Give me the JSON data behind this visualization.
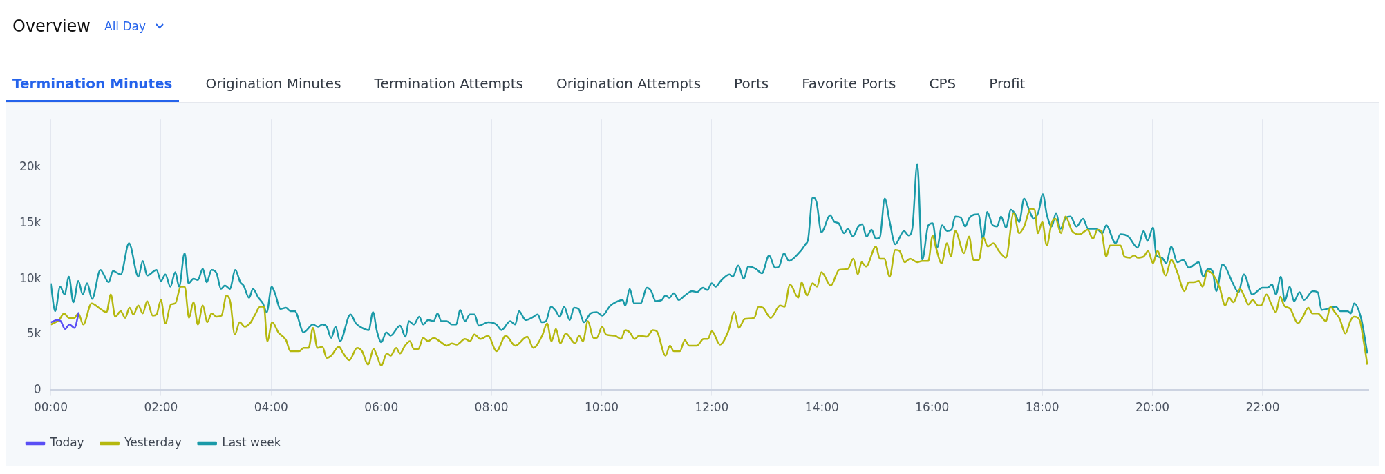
{
  "chart_data": {
    "type": "line",
    "title": "Overview",
    "subtitle": "All Day",
    "annotations": [
      "Termination Minutes",
      "Origination Minutes",
      "Termination Attempts",
      "Origination Attempts",
      "Ports",
      "Favorite Ports",
      "CPS",
      "Profit"
    ],
    "xlim": [
      0,
      23.92
    ],
    "xticks": [
      {
        "value": 0,
        "label": "00:00"
      },
      {
        "value": 2,
        "label": "02:00"
      },
      {
        "value": 4,
        "label": "04:00"
      },
      {
        "value": 6,
        "label": "06:00"
      },
      {
        "value": 8,
        "label": "08:00"
      },
      {
        "value": 10,
        "label": "10:00"
      },
      {
        "value": 12,
        "label": "12:00"
      },
      {
        "value": 14,
        "label": "14:00"
      },
      {
        "value": 16,
        "label": "16:00"
      },
      {
        "value": 18,
        "label": "18:00"
      },
      {
        "value": 20,
        "label": "20:00"
      },
      {
        "value": 22,
        "label": "22:00"
      }
    ],
    "ylim": [
      0,
      24300
    ],
    "yticks": [
      {
        "value": 0,
        "label": "0"
      },
      {
        "value": 5000,
        "label": "5k"
      },
      {
        "value": 10000,
        "label": "10k"
      },
      {
        "value": 15000,
        "label": "15k"
      },
      {
        "value": 20000,
        "label": "20k"
      }
    ],
    "grid": "x",
    "legend": "bottom left",
    "marker": "none",
    "line_style": "solid",
    "series": [
      {
        "name": "Today",
        "color": "#5a4ff5",
        "x": [
          0,
          0.12,
          0.18,
          0.26,
          0.34,
          0.43,
          0.51
        ],
        "values": [
          6100,
          6300,
          6200,
          5500,
          5900,
          5600,
          7000
        ]
      },
      {
        "name": "Yesterday",
        "color": "#b5b80f",
        "x": [
          0,
          0.15,
          0.24,
          0.33,
          0.43,
          0.5,
          0.59,
          0.74,
          0.9,
          1.01,
          1.09,
          1.17,
          1.27,
          1.35,
          1.43,
          1.5,
          1.59,
          1.67,
          1.75,
          1.85,
          1.92,
          2,
          2.08,
          2.18,
          2.26,
          2.36,
          2.43,
          2.51,
          2.59,
          2.67,
          2.76,
          2.84,
          2.92,
          3.01,
          3.1,
          3.19,
          3.26,
          3.34,
          3.43,
          3.52,
          3.63,
          3.71,
          3.8,
          3.87,
          3.93,
          4.02,
          4.13,
          4.27,
          4.35,
          4.51,
          4.59,
          4.68,
          4.76,
          4.84,
          4.93,
          5.01,
          5.09,
          5.23,
          5.31,
          5.42,
          5.56,
          5.65,
          5.76,
          5.86,
          5.92,
          6,
          6.1,
          6.17,
          6.27,
          6.34,
          6.43,
          6.52,
          6.59,
          6.67,
          6.76,
          6.85,
          6.95,
          7.06,
          7.19,
          7.28,
          7.37,
          7.52,
          7.61,
          7.69,
          7.8,
          7.94,
          8.09,
          8.26,
          8.43,
          8.65,
          8.76,
          8.92,
          9.01,
          9.09,
          9.17,
          9.25,
          9.35,
          9.52,
          9.59,
          9.66,
          9.75,
          9.85,
          9.91,
          10.01,
          10.08,
          10.24,
          10.35,
          10.43,
          10.51,
          10.6,
          10.68,
          10.82,
          10.93,
          11,
          11.16,
          11.24,
          11.31,
          11.42,
          11.51,
          11.59,
          11.73,
          11.85,
          11.93,
          12,
          12.15,
          12.3,
          12.41,
          12.49,
          12.6,
          12.77,
          12.85,
          12.93,
          13.07,
          13.24,
          13.32,
          13.42,
          13.57,
          13.63,
          13.73,
          13.83,
          13.91,
          13.99,
          14.16,
          14.31,
          14.47,
          14.57,
          14.65,
          14.72,
          14.8,
          14.98,
          15.05,
          15.13,
          15.23,
          15.33,
          15.41,
          15.5,
          15.6,
          15.73,
          15.82,
          15.93,
          16.01,
          16.07,
          16.17,
          16.27,
          16.34,
          16.42,
          16.58,
          16.67,
          16.75,
          16.85,
          16.93,
          17.01,
          17.11,
          17.21,
          17.34,
          17.48,
          17.58,
          17.67,
          17.79,
          17.86,
          17.92,
          18,
          18.08,
          18.17,
          18.24,
          18.34,
          18.42,
          18.54,
          18.68,
          18.82,
          18.92,
          19,
          19.07,
          19.16,
          19.23,
          19.42,
          19.49,
          19.59,
          19.67,
          19.73,
          19.84,
          19.92,
          20.01,
          20.09,
          20.24,
          20.34,
          20.45,
          20.58,
          20.66,
          20.75,
          20.84,
          20.91,
          21,
          21.11,
          21.22,
          21.32,
          21.39,
          21.47,
          21.59,
          21.67,
          21.74,
          21.82,
          21.92,
          21.97,
          22.07,
          22.15,
          22.24,
          22.32,
          22.39,
          22.5,
          22.64,
          22.72,
          22.83,
          22.9,
          23,
          23.15,
          23.23,
          23.31,
          23.4,
          23.5,
          23.6,
          23.66,
          23.76,
          23.83,
          23.9
        ],
        "values": [
          5900,
          6300,
          6900,
          6500,
          6500,
          6900,
          5900,
          7800,
          7300,
          7000,
          8600,
          6600,
          7100,
          6500,
          7400,
          6800,
          7600,
          6900,
          8000,
          6700,
          6800,
          8100,
          6000,
          7700,
          7800,
          9300,
          9300,
          6500,
          7900,
          5900,
          7600,
          6100,
          6900,
          6600,
          6700,
          8500,
          7900,
          5000,
          6100,
          5700,
          6100,
          6800,
          7500,
          7500,
          4400,
          6100,
          5200,
          4500,
          3500,
          3500,
          3800,
          3800,
          5600,
          3800,
          3900,
          2900,
          3100,
          3900,
          3300,
          2700,
          3800,
          3500,
          2300,
          3700,
          3100,
          2200,
          3300,
          3100,
          3800,
          3300,
          4000,
          4400,
          3700,
          3700,
          4700,
          4400,
          4700,
          4400,
          4000,
          4200,
          4100,
          4600,
          4400,
          5000,
          4600,
          4900,
          3500,
          4900,
          4000,
          4800,
          3800,
          4900,
          6000,
          4400,
          5500,
          4200,
          5100,
          4200,
          4900,
          4400,
          6200,
          4700,
          4700,
          5700,
          5000,
          4900,
          4600,
          5400,
          5200,
          4600,
          4900,
          4800,
          5400,
          5300,
          3100,
          4000,
          3500,
          3500,
          4500,
          4000,
          4000,
          4600,
          4600,
          5300,
          4100,
          5300,
          7000,
          5600,
          6400,
          6500,
          7500,
          7400,
          6500,
          7600,
          7500,
          9500,
          8300,
          9700,
          8500,
          9600,
          9300,
          10600,
          9400,
          10800,
          10900,
          11800,
          10400,
          11500,
          11100,
          12900,
          11800,
          11800,
          10200,
          12600,
          12500,
          11500,
          11800,
          11500,
          11600,
          11600,
          13900,
          12800,
          11400,
          13200,
          12000,
          14300,
          12300,
          13800,
          11700,
          11700,
          13700,
          12900,
          13200,
          12500,
          11900,
          15900,
          14100,
          14700,
          16300,
          16200,
          14100,
          15100,
          13000,
          15000,
          15400,
          14100,
          15600,
          14300,
          14000,
          14400,
          13600,
          14400,
          14300,
          12000,
          13000,
          13000,
          12000,
          11900,
          12100,
          11900,
          12000,
          12500,
          11400,
          12500,
          10300,
          11700,
          10600,
          8900,
          9700,
          9700,
          9800,
          9300,
          10700,
          10300,
          9200,
          7600,
          8300,
          7900,
          9100,
          8400,
          7700,
          8100,
          7600,
          7600,
          8600,
          7800,
          7000,
          8400,
          7600,
          7300,
          6000,
          6500,
          7400,
          6900,
          6900,
          6200,
          7500,
          7000,
          6400,
          5100,
          6300,
          6600,
          6300,
          4500,
          2300
        ]
      },
      {
        "name": "Last week",
        "color": "#1a9aa8",
        "x": [
          0,
          0.08,
          0.17,
          0.25,
          0.33,
          0.41,
          0.5,
          0.58,
          0.66,
          0.75,
          0.9,
          1.05,
          1.13,
          1.27,
          1.42,
          1.59,
          1.67,
          1.75,
          1.92,
          2,
          2.08,
          2.17,
          2.26,
          2.33,
          2.43,
          2.5,
          2.59,
          2.67,
          2.76,
          2.83,
          2.92,
          3.01,
          3.09,
          3.16,
          3.25,
          3.35,
          3.44,
          3.5,
          3.6,
          3.67,
          3.77,
          3.85,
          3.92,
          4.01,
          4.07,
          4.17,
          4.27,
          4.35,
          4.43,
          4.59,
          4.76,
          4.85,
          4.93,
          5.01,
          5.09,
          5.17,
          5.25,
          5.44,
          5.54,
          5.65,
          5.77,
          5.85,
          5.92,
          6,
          6.09,
          6.17,
          6.34,
          6.44,
          6.5,
          6.59,
          6.69,
          6.76,
          6.85,
          6.95,
          7.02,
          7.09,
          7.19,
          7.28,
          7.36,
          7.43,
          7.52,
          7.61,
          7.69,
          7.77,
          7.94,
          8.09,
          8.18,
          8.34,
          8.43,
          8.5,
          8.62,
          8.73,
          8.84,
          8.91,
          8.99,
          9.08,
          9.17,
          9.24,
          9.32,
          9.42,
          9.5,
          9.58,
          9.68,
          9.8,
          9.91,
          10.01,
          10.16,
          10.3,
          10.38,
          10.43,
          10.51,
          10.59,
          10.71,
          10.82,
          10.9,
          10.98,
          11.09,
          11.16,
          11.23,
          11.31,
          11.4,
          11.51,
          11.64,
          11.73,
          11.84,
          11.92,
          12,
          12.07,
          12.16,
          12.32,
          12.38,
          12.48,
          12.58,
          12.66,
          12.8,
          12.91,
          13.04,
          13.15,
          13.22,
          13.31,
          13.4,
          13.54,
          13.7,
          13.75,
          13.83,
          13.9,
          13.99,
          14.15,
          14.23,
          14.3,
          14.4,
          14.47,
          14.56,
          14.66,
          14.73,
          14.81,
          14.9,
          14.98,
          15.05,
          15.14,
          15.23,
          15.33,
          15.49,
          15.57,
          15.64,
          15.73,
          15.82,
          15.93,
          16.01,
          16.09,
          16.18,
          16.27,
          16.35,
          16.42,
          16.52,
          16.6,
          16.68,
          16.84,
          16.92,
          17,
          17.1,
          17.18,
          17.25,
          17.34,
          17.43,
          17.51,
          17.58,
          17.67,
          17.76,
          17.84,
          17.93,
          18.01,
          18.08,
          18.17,
          18.25,
          18.33,
          18.43,
          18.51,
          18.62,
          18.74,
          18.83,
          18.98,
          19.09,
          19.16,
          19.33,
          19.42,
          19.56,
          19.73,
          19.84,
          19.91,
          20.01,
          20.07,
          20.17,
          20.25,
          20.34,
          20.45,
          20.56,
          20.66,
          20.84,
          20.92,
          21.01,
          21.09,
          21.16,
          21.27,
          21.32,
          21.45,
          21.56,
          21.66,
          21.81,
          22,
          22.09,
          22.17,
          22.24,
          22.33,
          22.4,
          22.49,
          22.57,
          22.67,
          22.75,
          22.91,
          23,
          23.07,
          23.33,
          23.41,
          23.54,
          23.6,
          23.66,
          23.79,
          23.9
        ],
        "values": [
          9600,
          7100,
          9300,
          8600,
          10200,
          7900,
          9800,
          8600,
          9600,
          8200,
          10800,
          9700,
          10700,
          10400,
          13200,
          10200,
          11600,
          10300,
          10800,
          9800,
          10400,
          9300,
          10600,
          9300,
          12300,
          9600,
          10000,
          9900,
          10900,
          9700,
          10800,
          10500,
          9100,
          9400,
          9100,
          10800,
          9700,
          9400,
          8300,
          9100,
          8300,
          7800,
          7000,
          9300,
          8700,
          7300,
          7400,
          7100,
          7100,
          5200,
          5900,
          5700,
          5900,
          5700,
          4700,
          5700,
          4400,
          6800,
          6000,
          5600,
          5400,
          7000,
          5300,
          4300,
          5200,
          4900,
          5800,
          4800,
          6200,
          5900,
          6600,
          5900,
          6300,
          6200,
          6900,
          6200,
          6200,
          5900,
          5900,
          7200,
          6200,
          6800,
          6800,
          5800,
          6100,
          5900,
          5400,
          6200,
          5900,
          7100,
          6300,
          6500,
          6800,
          6100,
          6200,
          7500,
          7100,
          6600,
          7500,
          6300,
          7400,
          7300,
          6100,
          6900,
          7000,
          6700,
          7600,
          8000,
          8100,
          7600,
          9100,
          7800,
          7800,
          9200,
          8900,
          8000,
          8100,
          8500,
          8300,
          8700,
          8100,
          8500,
          8900,
          8800,
          9200,
          9000,
          9600,
          9300,
          9800,
          10400,
          10200,
          11200,
          10000,
          11100,
          10900,
          10500,
          12100,
          11000,
          11100,
          12300,
          11600,
          12100,
          13100,
          13600,
          17300,
          16900,
          14200,
          15700,
          15100,
          15000,
          14100,
          14500,
          13800,
          14700,
          14900,
          13800,
          14400,
          13600,
          13700,
          17200,
          15100,
          13100,
          14300,
          13900,
          14500,
          20300,
          11700,
          14800,
          15000,
          12800,
          14800,
          14300,
          14400,
          15600,
          15500,
          14700,
          15500,
          15800,
          13600,
          16000,
          14800,
          14700,
          15600,
          14600,
          16200,
          15800,
          15100,
          17200,
          16200,
          15400,
          16000,
          17600,
          15800,
          14700,
          15900,
          14500,
          15500,
          15600,
          14700,
          15400,
          14500,
          14500,
          14100,
          14800,
          13200,
          14000,
          13800,
          12800,
          14300,
          13400,
          14600,
          12100,
          11900,
          11400,
          12900,
          11500,
          11700,
          11000,
          11500,
          10200,
          10900,
          10700,
          8900,
          11300,
          11100,
          9700,
          8800,
          10400,
          8600,
          9200,
          9200,
          9500,
          8600,
          10200,
          8000,
          9300,
          8000,
          8800,
          8100,
          8900,
          8800,
          7200,
          7500,
          7100,
          7100,
          6900,
          7800,
          6400,
          3300
        ]
      }
    ]
  }
}
